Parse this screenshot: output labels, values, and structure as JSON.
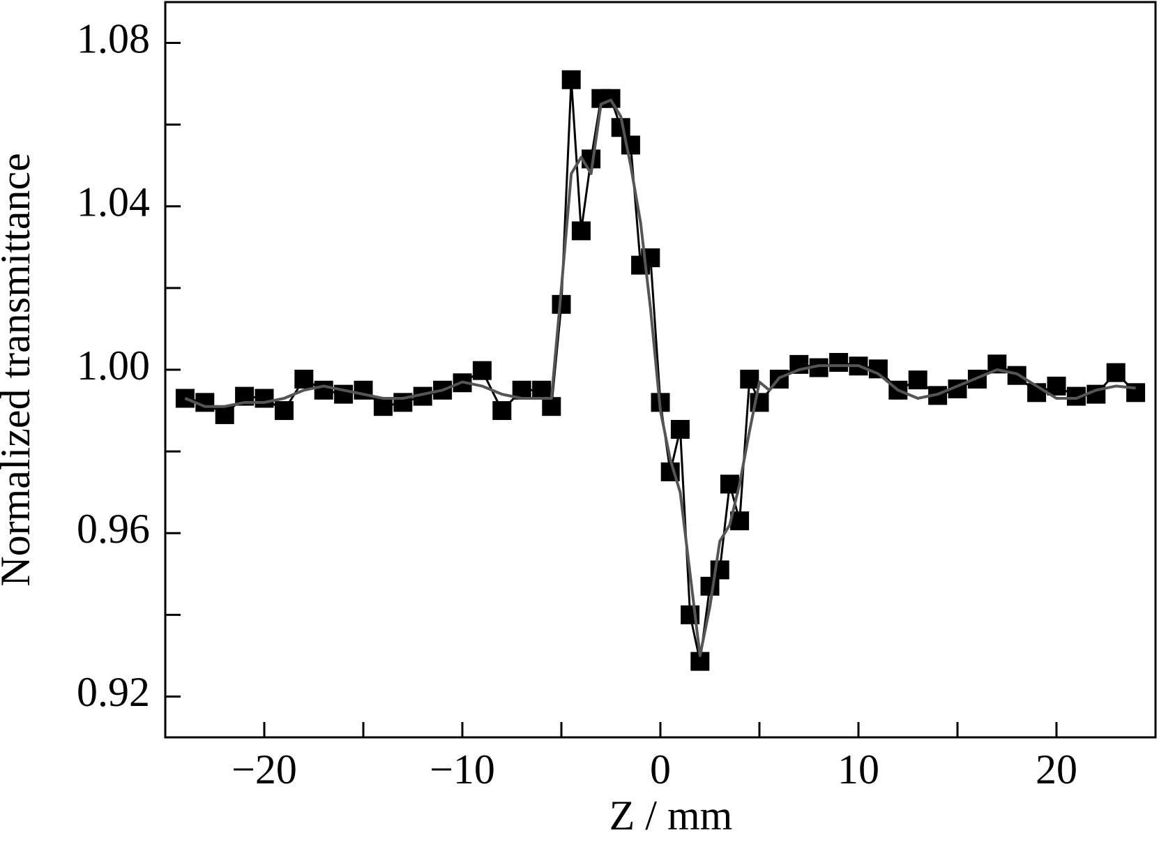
{
  "chart_data": {
    "type": "line",
    "xlabel": "Z / mm",
    "ylabel": "Normalized transmittance",
    "xlim": [
      -25,
      25
    ],
    "ylim": [
      0.91,
      1.09
    ],
    "xticks": [
      {
        "value": -20,
        "label": "−20"
      },
      {
        "value": -10,
        "label": "−10"
      },
      0,
      10,
      20
    ],
    "xminorticks": [
      -15,
      -5,
      5,
      15
    ],
    "yticks": [
      0.92,
      0.96,
      {
        "value": 1.0,
        "label": "1.00"
      },
      1.04,
      1.08
    ],
    "yminorticks": [
      0.94,
      0.98,
      1.02,
      1.06
    ],
    "grid": false,
    "series": [
      {
        "color": "#000000",
        "marker": "square",
        "x": [
          -24,
          -23,
          -22,
          -21,
          -20,
          -19,
          -18,
          -17,
          -16,
          -15,
          -14,
          -13,
          -12,
          -11,
          -10,
          -9,
          -8,
          -7,
          -6,
          -5.5,
          -5,
          -4.5,
          -4,
          -3.5,
          -3,
          -2.5,
          -2,
          -1.5,
          -1,
          -0.5,
          0,
          0.5,
          1,
          1.5,
          2,
          2.5,
          3,
          3.5,
          4,
          4.5,
          5,
          6,
          7,
          8,
          9,
          10,
          11,
          12,
          13,
          14,
          15,
          16,
          17,
          18,
          19,
          20,
          21,
          22,
          23,
          24
        ],
        "values": [
          0.993,
          0.992,
          0.989,
          0.9935,
          0.993,
          0.99,
          0.9977,
          0.995,
          0.994,
          0.995,
          0.991,
          0.992,
          0.9935,
          0.995,
          0.9968,
          0.9998,
          0.99,
          0.995,
          0.995,
          0.991,
          1.016,
          1.071,
          1.034,
          1.0516,
          1.0664,
          1.0664,
          1.0593,
          1.055,
          1.0256,
          1.0274,
          0.992,
          0.975,
          0.9854,
          0.94,
          0.9286,
          0.947,
          0.951,
          0.972,
          0.963,
          0.9977,
          0.992,
          0.9977,
          1.0013,
          1.0005,
          1.0018,
          1.0009,
          1.0002,
          0.995,
          0.9975,
          0.9937,
          0.9953,
          0.9977,
          1.0014,
          0.9986,
          0.9944,
          0.996,
          0.9935,
          0.994,
          0.9993,
          0.9944
        ]
      },
      {
        "color": "#555555",
        "marker": "none",
        "x": [
          -24,
          -23,
          -22,
          -21,
          -20,
          -19,
          -18,
          -17,
          -16,
          -15,
          -14,
          -13,
          -12,
          -11,
          -10,
          -9,
          -8,
          -7,
          -6,
          -5.5,
          -5,
          -4.5,
          -4,
          -3.5,
          -3,
          -2.5,
          -2,
          -1.5,
          -1,
          -0.5,
          0,
          0.5,
          1,
          1.5,
          2,
          2.5,
          3,
          3.5,
          4,
          4.5,
          5,
          5.5,
          6,
          7,
          8,
          9,
          10,
          11,
          12,
          13,
          14,
          15,
          16,
          17,
          18,
          19,
          20,
          21,
          22,
          23,
          24
        ],
        "values": [
          0.993,
          0.991,
          0.991,
          0.992,
          0.992,
          0.993,
          0.995,
          0.996,
          0.995,
          0.994,
          0.993,
          0.993,
          0.994,
          0.995,
          0.997,
          0.996,
          0.994,
          0.993,
          0.993,
          0.993,
          1.02,
          1.048,
          1.052,
          1.048,
          1.065,
          1.066,
          1.062,
          1.05,
          1.036,
          1.015,
          0.99,
          0.978,
          0.97,
          0.95,
          0.93,
          0.942,
          0.958,
          0.962,
          0.972,
          0.985,
          0.997,
          0.995,
          0.998,
          1.0,
          1.001,
          1.001,
          1.001,
          0.999,
          0.995,
          0.993,
          0.994,
          0.996,
          0.998,
          1.0,
          0.999,
          0.996,
          0.993,
          0.993,
          0.995,
          0.996,
          0.9955
        ]
      }
    ]
  }
}
